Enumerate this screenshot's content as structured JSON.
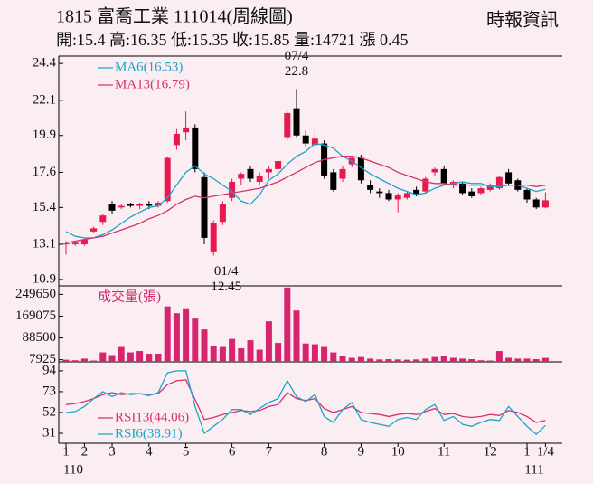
{
  "header": {
    "title": "1815  富喬工業 111014(周線圖)",
    "source": "時報資訊",
    "quote": "開:15.4 高:16.35 低:15.35 收:15.85 量:14721 漲 0.45"
  },
  "chart_data": [
    {
      "type": "candlestick",
      "categories": [
        "1",
        null,
        "2",
        null,
        null,
        "3",
        null,
        null,
        null,
        "4",
        null,
        null,
        null,
        "5",
        null,
        null,
        null,
        null,
        "6",
        null,
        null,
        null,
        "7",
        null,
        null,
        null,
        null,
        null,
        "8",
        null,
        null,
        null,
        "9",
        null,
        null,
        null,
        "10",
        null,
        null,
        null,
        null,
        "11",
        null,
        null,
        null,
        null,
        "12",
        null,
        null,
        null,
        "1",
        null,
        "1/4"
      ],
      "year_labels": [
        "110",
        null,
        null,
        null,
        null,
        null,
        null,
        null,
        null,
        null,
        null,
        null,
        null,
        null,
        null,
        null,
        null,
        null,
        null,
        null,
        null,
        null,
        null,
        null,
        null,
        null,
        null,
        null,
        null,
        null,
        null,
        null,
        null,
        null,
        null,
        null,
        null,
        null,
        null,
        null,
        null,
        null,
        null,
        null,
        null,
        null,
        null,
        null,
        null,
        null,
        "111",
        null,
        null
      ],
      "open": [
        13.1,
        13.1,
        13.1,
        13.9,
        14.5,
        15.6,
        15.4,
        15.6,
        15.5,
        15.6,
        15.5,
        15.8,
        19.3,
        20.1,
        20.4,
        17.3,
        12.6,
        14.5,
        16.0,
        17.2,
        17.8,
        17.0,
        17.6,
        17.8,
        19.8,
        21.6,
        19.9,
        19.3,
        19.4,
        17.6,
        17.2,
        18.1,
        18.5,
        16.8,
        16.4,
        16.3,
        15.9,
        16.0,
        16.5,
        16.4,
        17.6,
        17.8,
        16.8,
        16.9,
        16.4,
        16.3,
        16.5,
        16.6,
        17.6,
        17.1,
        16.5,
        15.9,
        15.4
      ],
      "high": [
        13.3,
        13.3,
        13.5,
        14.2,
        15.0,
        15.8,
        15.6,
        15.7,
        15.7,
        15.8,
        15.8,
        18.6,
        20.3,
        21.4,
        20.6,
        17.6,
        14.6,
        15.8,
        17.2,
        17.6,
        18.0,
        17.6,
        18.0,
        18.4,
        21.4,
        22.8,
        20.2,
        20.3,
        19.6,
        17.8,
        18.0,
        18.6,
        18.7,
        17.1,
        16.6,
        16.5,
        16.3,
        16.4,
        16.7,
        17.3,
        17.9,
        18.0,
        17.1,
        17.0,
        16.6,
        16.7,
        16.9,
        17.4,
        17.8,
        17.2,
        16.6,
        16.0,
        16.35
      ],
      "low": [
        12.45,
        13.0,
        13.0,
        13.8,
        14.3,
        15.0,
        15.3,
        15.4,
        15.3,
        15.3,
        15.4,
        15.7,
        19.0,
        19.6,
        17.6,
        13.1,
        12.4,
        14.3,
        15.8,
        16.8,
        17.0,
        16.8,
        17.2,
        17.5,
        19.6,
        19.8,
        19.2,
        19.0,
        17.2,
        16.4,
        17.0,
        17.9,
        16.9,
        16.3,
        16.0,
        15.8,
        15.1,
        15.9,
        16.1,
        16.3,
        17.4,
        16.8,
        16.6,
        16.2,
        16.0,
        16.2,
        16.4,
        16.5,
        16.8,
        16.4,
        15.7,
        15.3,
        15.35
      ],
      "close": [
        13.15,
        13.2,
        13.4,
        14.1,
        14.9,
        15.2,
        15.5,
        15.5,
        15.6,
        15.5,
        15.7,
        18.5,
        20.0,
        20.4,
        17.8,
        13.5,
        14.4,
        15.6,
        17.0,
        17.5,
        17.2,
        17.4,
        17.8,
        18.3,
        21.3,
        19.9,
        19.4,
        19.7,
        17.4,
        16.5,
        17.8,
        18.5,
        17.1,
        16.5,
        16.3,
        15.9,
        16.2,
        16.3,
        16.2,
        17.2,
        17.8,
        16.9,
        17.0,
        16.3,
        16.1,
        16.6,
        16.8,
        17.3,
        16.9,
        16.5,
        15.9,
        15.4,
        15.85
      ],
      "up_color": "#e8194f",
      "down_color": "#000000",
      "series": [
        {
          "name": "MA6(16.53)",
          "color": "#1aa6c8",
          "values": [
            13.9,
            13.6,
            13.5,
            13.5,
            13.7,
            14.0,
            14.4,
            14.8,
            15.1,
            15.4,
            15.5,
            16.0,
            16.8,
            17.6,
            18.0,
            17.5,
            17.2,
            16.8,
            16.4,
            15.8,
            15.6,
            16.2,
            17.1,
            17.5,
            18.1,
            18.6,
            18.9,
            19.4,
            19.3,
            19.1,
            18.6,
            18.3,
            17.9,
            17.5,
            17.2,
            16.9,
            16.6,
            16.4,
            16.2,
            16.3,
            16.6,
            16.8,
            16.9,
            17.0,
            16.9,
            16.9,
            16.7,
            16.7,
            16.8,
            16.8,
            16.6,
            16.4,
            16.53
          ]
        },
        {
          "name": "MA13(16.79)",
          "color": "#d6336c",
          "values": [
            13.2,
            13.3,
            13.4,
            13.5,
            13.6,
            13.8,
            14.0,
            14.2,
            14.4,
            14.7,
            14.9,
            15.2,
            15.6,
            15.9,
            16.1,
            16.0,
            16.1,
            16.2,
            16.3,
            16.4,
            16.5,
            16.6,
            16.8,
            17.0,
            17.3,
            17.6,
            17.9,
            18.2,
            18.4,
            18.5,
            18.6,
            18.6,
            18.5,
            18.3,
            18.1,
            17.9,
            17.6,
            17.4,
            17.2,
            17.0,
            16.9,
            16.9,
            16.8,
            16.8,
            16.8,
            16.8,
            16.8,
            16.8,
            16.8,
            16.8,
            16.8,
            16.7,
            16.79
          ]
        }
      ],
      "annotations": [
        {
          "date": "07/4",
          "label": "22.8",
          "at": "high"
        },
        {
          "date": "01/4",
          "label": "12.45",
          "at": "low"
        }
      ],
      "legend": "upper left",
      "ylim": [
        10.5,
        24.86
      ],
      "yticks": [
        24.4,
        22.1,
        19.9,
        17.6,
        15.4,
        13.1,
        10.9
      ]
    },
    {
      "type": "bar",
      "series": [
        {
          "name": "成交量(張)",
          "color": "#d6246e",
          "values": [
            8000,
            6000,
            12000,
            5000,
            35000,
            25000,
            55000,
            35000,
            40000,
            30000,
            30000,
            205000,
            180000,
            195000,
            160000,
            120000,
            60000,
            55000,
            85000,
            50000,
            80000,
            45000,
            150000,
            70000,
            275000,
            190000,
            68000,
            65000,
            55000,
            35000,
            20000,
            15000,
            18000,
            12000,
            9000,
            10000,
            9000,
            8000,
            9000,
            12000,
            18000,
            20000,
            15000,
            12000,
            10000,
            6000,
            5000,
            40000,
            15000,
            12000,
            12000,
            10000,
            14721
          ]
        }
      ],
      "legend": "upper left",
      "ylim": [
        0,
        281000
      ],
      "yticks": [
        249650,
        169075,
        88500,
        7925
      ]
    },
    {
      "type": "line",
      "series": [
        {
          "name": "RSI13(44.06)",
          "color": "#d6336c",
          "values": [
            60,
            61,
            63,
            66,
            70,
            72,
            70,
            71,
            71,
            70,
            71,
            80,
            84,
            85,
            65,
            45,
            47,
            50,
            52,
            54,
            53,
            54,
            58,
            60,
            72,
            66,
            64,
            66,
            56,
            52,
            55,
            58,
            52,
            51,
            50,
            48,
            50,
            51,
            50,
            53,
            56,
            50,
            51,
            48,
            47,
            48,
            50,
            49,
            54,
            52,
            48,
            42,
            44.06
          ]
        },
        {
          "name": "RSI6(38.91)",
          "color": "#1aa6c8",
          "values": [
            52,
            53,
            58,
            66,
            73,
            68,
            72,
            70,
            71,
            69,
            72,
            92,
            94,
            94,
            58,
            31,
            38,
            45,
            55,
            55,
            50,
            56,
            62,
            66,
            84,
            68,
            63,
            70,
            48,
            42,
            55,
            62,
            45,
            42,
            40,
            38,
            45,
            47,
            45,
            55,
            60,
            44,
            48,
            40,
            38,
            42,
            45,
            44,
            58,
            48,
            38,
            30,
            38.91
          ]
        }
      ],
      "legend": "lower left",
      "ylim": [
        21,
        103
      ],
      "yticks": [
        94,
        73,
        52,
        31
      ]
    }
  ]
}
